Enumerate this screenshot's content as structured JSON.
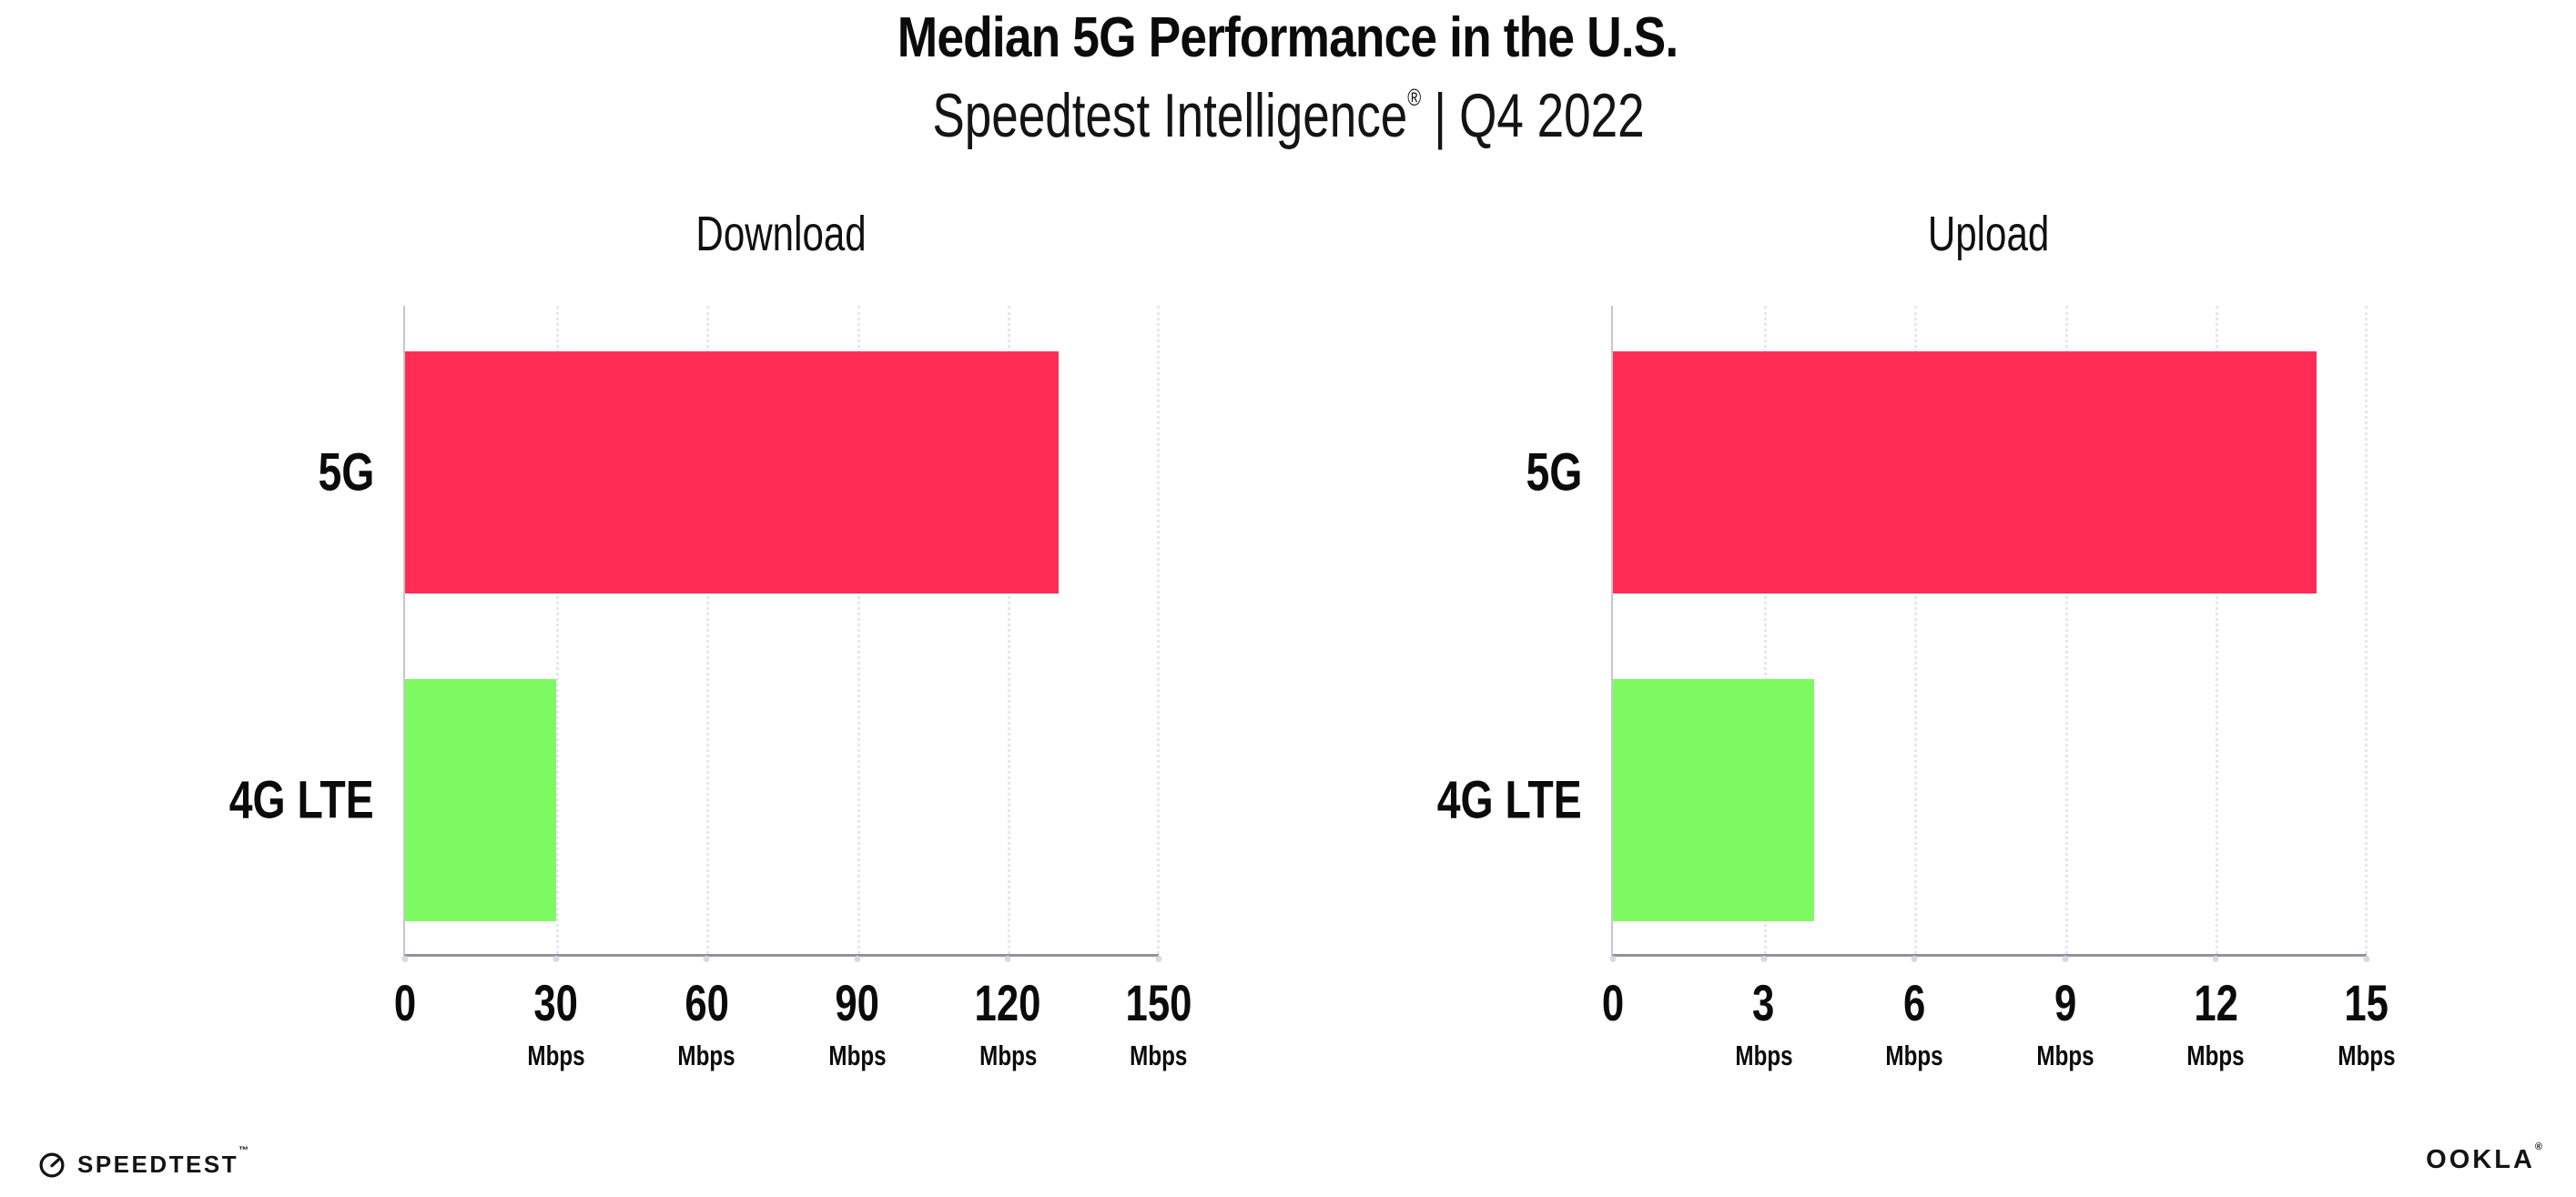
{
  "header": {
    "title": "Median 5G Performance in the U.S.",
    "subtitle": {
      "brand": "Speedtest Intelligence",
      "registered": "®",
      "divider": "|",
      "period": "Q4 2022"
    }
  },
  "chart_data": {
    "type": "bar",
    "orientation": "horizontal",
    "categories": [
      "5G",
      "4G LTE"
    ],
    "grid": "vertical-dotted",
    "legend": "none",
    "colors": {
      "bar_5g": "#ff2d55",
      "bar_4g": "#7df962",
      "gridline": "#e6e6f0",
      "axis": "#92929c",
      "text": "#0b0b0b"
    },
    "charts": [
      {
        "title": "Download",
        "xlim": [
          0,
          150
        ],
        "tick_step": 30,
        "unit": "Mbps",
        "ticks": [
          {
            "label": "0",
            "unit": ""
          },
          {
            "label": "30",
            "unit": "Mbps"
          },
          {
            "label": "60",
            "unit": "Mbps"
          },
          {
            "label": "90",
            "unit": "Mbps"
          },
          {
            "label": "120",
            "unit": "Mbps"
          },
          {
            "label": "150",
            "unit": "Mbps"
          }
        ],
        "values": [
          {
            "category": "5G",
            "mbps": 130
          },
          {
            "category": "4G LTE",
            "mbps": 30
          }
        ]
      },
      {
        "title": "Upload",
        "xlim": [
          0,
          15
        ],
        "tick_step": 3,
        "unit": "Mbps",
        "ticks": [
          {
            "label": "0",
            "unit": ""
          },
          {
            "label": "3",
            "unit": "Mbps"
          },
          {
            "label": "6",
            "unit": "Mbps"
          },
          {
            "label": "9",
            "unit": "Mbps"
          },
          {
            "label": "12",
            "unit": "Mbps"
          },
          {
            "label": "15",
            "unit": "Mbps"
          }
        ],
        "values": [
          {
            "category": "5G",
            "mbps": 14
          },
          {
            "category": "4G LTE",
            "mbps": 4
          }
        ]
      }
    ]
  },
  "footer": {
    "speedtest_logo": "SPEEDTEST",
    "speedtest_mark": "™",
    "ookla_logo": "OOKLA",
    "ookla_mark": "®"
  }
}
